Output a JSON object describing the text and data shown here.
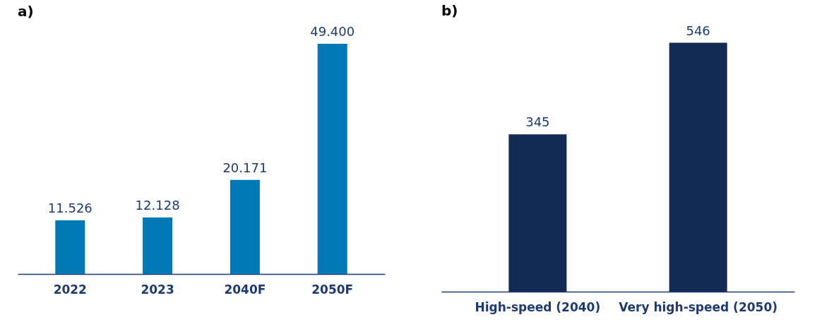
{
  "chart_data": [
    {
      "type": "bar",
      "title": "a)",
      "categories": [
        "2022",
        "2023",
        "2040F",
        "2050F"
      ],
      "values": [
        11526,
        12128,
        20171,
        49400
      ],
      "value_labels": [
        "11.526",
        "12.128",
        "20.171",
        "49.400"
      ],
      "color": "#0079b5",
      "tick_labels": "x"
    },
    {
      "type": "bar",
      "title": "b)",
      "categories": [
        "High-speed (2040)",
        "Very high-speed (2050)"
      ],
      "values": [
        345,
        546
      ],
      "data_labels": true,
      "color": "#142b56",
      "tick_labels": "x"
    }
  ]
}
